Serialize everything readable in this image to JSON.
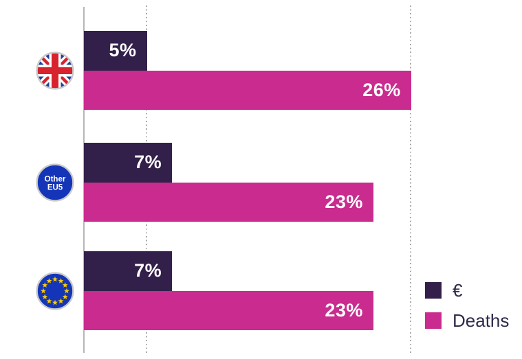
{
  "chart_data": {
    "type": "bar",
    "orientation": "horizontal",
    "title": "",
    "xlabel": "",
    "ylabel": "",
    "series": [
      {
        "name": "€",
        "color": "#33204a"
      },
      {
        "name": "Deaths",
        "color": "#c92b8e"
      }
    ],
    "groups": [
      {
        "icon": "uk-flag-icon",
        "icon_type": "uk",
        "values": [
          5,
          26
        ],
        "labels": [
          "5%",
          "26%"
        ]
      },
      {
        "icon": "other-eu5-badge-icon",
        "icon_type": "badge",
        "badge_lines": [
          "Other",
          "EU5"
        ],
        "values": [
          7,
          23
        ],
        "labels": [
          "7%",
          "23%"
        ]
      },
      {
        "icon": "eu-flag-icon",
        "icon_type": "eu",
        "values": [
          7,
          23
        ],
        "labels": [
          "7%",
          "23%"
        ]
      }
    ],
    "x_axis": {
      "min": 0,
      "max": 34.8,
      "tick_labels_visible": false,
      "dotted_guides_at": [
        5,
        26
      ]
    },
    "legend": {
      "position": "bottom-right",
      "entries": [
        "€",
        "Deaths"
      ]
    }
  },
  "colors": {
    "series_euro": "#33204a",
    "series_deaths": "#c92b8e",
    "bar_label_text": "#ffffff",
    "legend_text": "#2e2a4c",
    "axis_line": "#b5b5ba",
    "guide_dots": "#a8a8a8",
    "badge_blue": "#1535b8",
    "uk_flag_blue": "#21409a",
    "uk_flag_red": "#d8222d",
    "eu_star_yellow": "#f5c800",
    "icon_ring_gray": "#c9c9c9"
  }
}
